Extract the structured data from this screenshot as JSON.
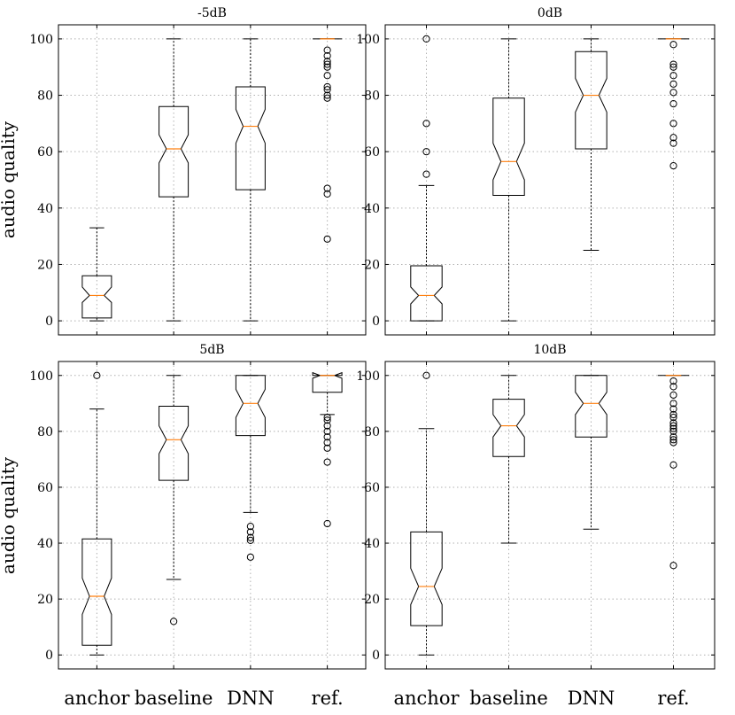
{
  "ylabel": "audio quality",
  "categories": [
    "anchor",
    "baseline",
    "DNN",
    "ref."
  ],
  "chart_data": [
    {
      "type": "boxplot",
      "title": "-5dB",
      "ylabel": "audio quality",
      "ylim": [
        -5,
        105
      ],
      "yticks": [
        0,
        20,
        40,
        60,
        80,
        100
      ],
      "grid": true,
      "boxes": [
        {
          "name": "anchor",
          "whislo": 0,
          "q1": 1,
          "med": 9,
          "q3": 16,
          "whishi": 33,
          "notch_lo": 6.5,
          "notch_hi": 12,
          "fliers": []
        },
        {
          "name": "baseline",
          "whislo": 0,
          "q1": 44,
          "med": 61,
          "q3": 76,
          "whishi": 100,
          "notch_lo": 56,
          "notch_hi": 66,
          "fliers": []
        },
        {
          "name": "DNN",
          "whislo": 0,
          "q1": 46.5,
          "med": 69,
          "q3": 83,
          "whishi": 100,
          "notch_lo": 63,
          "notch_hi": 75,
          "fliers": []
        },
        {
          "name": "ref.",
          "whislo": 100,
          "q1": 100,
          "med": 100,
          "q3": 100,
          "whishi": 100,
          "notch_lo": 100,
          "notch_hi": 100,
          "fliers": [
            96,
            94,
            92,
            91,
            90,
            87,
            83,
            82,
            80,
            79,
            47,
            45,
            29
          ]
        }
      ]
    },
    {
      "type": "boxplot",
      "title": "0dB",
      "ylabel": "",
      "ylim": [
        -5,
        105
      ],
      "yticks": [
        0,
        20,
        40,
        60,
        80,
        100
      ],
      "grid": true,
      "boxes": [
        {
          "name": "anchor",
          "whislo": 0,
          "q1": 0,
          "med": 9,
          "q3": 19.5,
          "whishi": 48,
          "notch_lo": 6,
          "notch_hi": 12,
          "fliers": [
            100,
            70,
            60,
            52
          ]
        },
        {
          "name": "baseline",
          "whislo": 0,
          "q1": 44.5,
          "med": 56.5,
          "q3": 79,
          "whishi": 100,
          "notch_lo": 50,
          "notch_hi": 63,
          "fliers": []
        },
        {
          "name": "DNN",
          "whislo": 25,
          "q1": 61,
          "med": 80,
          "q3": 95.5,
          "whishi": 100,
          "notch_lo": 74,
          "notch_hi": 86,
          "fliers": []
        },
        {
          "name": "ref.",
          "whislo": 100,
          "q1": 100,
          "med": 100,
          "q3": 100,
          "whishi": 100,
          "notch_lo": 100,
          "notch_hi": 100,
          "fliers": [
            98,
            91,
            90,
            87,
            84,
            81,
            77,
            70,
            65,
            63,
            55
          ]
        }
      ]
    },
    {
      "type": "boxplot",
      "title": "5dB",
      "ylabel": "audio quality",
      "ylim": [
        -5,
        105
      ],
      "yticks": [
        0,
        20,
        40,
        60,
        80,
        100
      ],
      "grid": true,
      "boxes": [
        {
          "name": "anchor",
          "whislo": 0,
          "q1": 3.5,
          "med": 21,
          "q3": 41.5,
          "whishi": 88,
          "notch_lo": 14.5,
          "notch_hi": 27.5,
          "fliers": [
            100
          ]
        },
        {
          "name": "baseline",
          "whislo": 27,
          "q1": 62.5,
          "med": 77,
          "q3": 89,
          "whishi": 100,
          "notch_lo": 72,
          "notch_hi": 82,
          "fliers": [
            12
          ]
        },
        {
          "name": "DNN",
          "whislo": 51,
          "q1": 78.5,
          "med": 90,
          "q3": 100,
          "whishi": 100,
          "notch_lo": 85,
          "notch_hi": 95,
          "fliers": [
            46,
            44,
            42,
            41,
            35
          ]
        },
        {
          "name": "ref.",
          "whislo": 86,
          "q1": 94,
          "med": 100,
          "q3": 100,
          "whishi": 100,
          "notch_lo": 99,
          "notch_hi": 101,
          "fliers": [
            85,
            84,
            82,
            80,
            78,
            76,
            74,
            69,
            47
          ]
        }
      ]
    },
    {
      "type": "boxplot",
      "title": "10dB",
      "ylabel": "",
      "ylim": [
        -5,
        105
      ],
      "yticks": [
        0,
        20,
        40,
        60,
        80,
        100
      ],
      "grid": true,
      "boxes": [
        {
          "name": "anchor",
          "whislo": 0,
          "q1": 10.5,
          "med": 24.5,
          "q3": 44,
          "whishi": 81,
          "notch_lo": 18,
          "notch_hi": 31,
          "fliers": [
            100
          ]
        },
        {
          "name": "baseline",
          "whislo": 40,
          "q1": 71,
          "med": 82,
          "q3": 91.5,
          "whishi": 100,
          "notch_lo": 78,
          "notch_hi": 86,
          "fliers": []
        },
        {
          "name": "DNN",
          "whislo": 45,
          "q1": 78,
          "med": 90,
          "q3": 100,
          "whishi": 100,
          "notch_lo": 86,
          "notch_hi": 94,
          "fliers": []
        },
        {
          "name": "ref.",
          "whislo": 100,
          "q1": 100,
          "med": 100,
          "q3": 100,
          "whishi": 100,
          "notch_lo": 100,
          "notch_hi": 100,
          "fliers": [
            98,
            96,
            93,
            90,
            88,
            86,
            85,
            83,
            82,
            81,
            80,
            78,
            77,
            76,
            68,
            32
          ]
        }
      ]
    }
  ]
}
